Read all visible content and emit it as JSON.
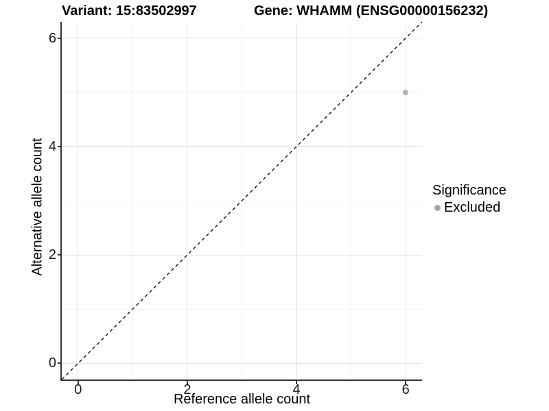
{
  "chart_data": {
    "type": "scatter",
    "titles": {
      "left": "Variant: 15:83502997",
      "right": "Gene: WHAMM (ENSG00000156232)"
    },
    "xlabel": "Reference allele count",
    "ylabel": "Alternative allele count",
    "xlim": [
      -0.3,
      6.3
    ],
    "ylim": [
      -0.3,
      6.3
    ],
    "x_ticks": [
      0,
      2,
      4,
      6
    ],
    "y_ticks": [
      0,
      2,
      4,
      6
    ],
    "x_minor": [
      1,
      3,
      5
    ],
    "y_minor": [
      1,
      3,
      5
    ],
    "grid": "on",
    "identity_line": {
      "style": "dashed",
      "color": "#000000",
      "from": [
        -0.3,
        -0.3
      ],
      "to": [
        6.3,
        6.3
      ]
    },
    "series": [
      {
        "name": "Excluded",
        "color": "#b3b3b3",
        "points": [
          [
            6,
            5
          ]
        ]
      }
    ],
    "legend": {
      "title": "Significance",
      "position": "right",
      "entries": [
        {
          "label": "Excluded",
          "color": "#a6a6a6",
          "marker": "dot"
        }
      ]
    }
  },
  "colors": {
    "background": "#ffffff",
    "axis_line": "#333333",
    "grid_major": "#e2e2e2",
    "grid_minor": "#f1f1f1",
    "tick_label": "#1a1a1a"
  }
}
